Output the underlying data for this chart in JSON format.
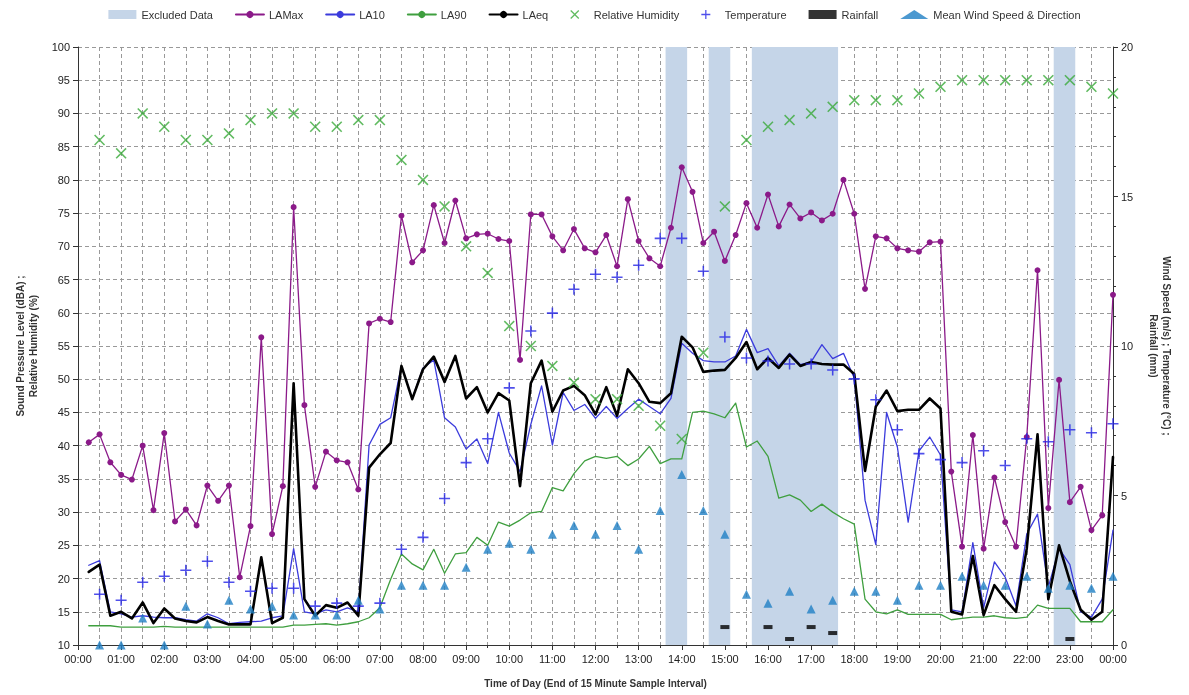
{
  "chart_data": {
    "type": "line",
    "xlabel": "Time of Day (End of 15 Minute Sample Interval)",
    "ylabel": "Sound Pressure Level (dBA) ;\nRelative Humidity (%)",
    "y2label": "Wind Speed (m/s) ; Temperature (°C) ;\nRainfall (mm)",
    "x": [
      0.25,
      0.5,
      0.75,
      1,
      1.25,
      1.5,
      1.75,
      2,
      2.25,
      2.5,
      2.75,
      3,
      3.25,
      3.5,
      3.75,
      4,
      4.25,
      4.5,
      4.75,
      5,
      5.25,
      5.5,
      5.75,
      6,
      6.25,
      6.5,
      6.75,
      7,
      7.25,
      7.5,
      7.75,
      8,
      8.25,
      8.5,
      8.75,
      9,
      9.25,
      9.5,
      9.75,
      10,
      10.25,
      10.5,
      10.75,
      11,
      11.25,
      11.5,
      11.75,
      12,
      12.25,
      12.5,
      12.75,
      13,
      13.25,
      13.5,
      13.75,
      14,
      14.25,
      14.5,
      14.75,
      15,
      15.25,
      15.5,
      15.75,
      16,
      16.25,
      16.5,
      16.75,
      17,
      17.25,
      17.5,
      17.75,
      18,
      18.25,
      18.5,
      18.75,
      19,
      19.25,
      19.5,
      19.75,
      20,
      20.25,
      20.5,
      20.75,
      21,
      21.25,
      21.5,
      21.75,
      22,
      22.25,
      22.5,
      22.75,
      23,
      23.25,
      23.5,
      23.75,
      24
    ],
    "xlim": [
      0,
      24
    ],
    "xticks": [
      {
        "value": 0,
        "label": "00:00"
      },
      {
        "value": 1,
        "label": "01:00"
      },
      {
        "value": 2,
        "label": "02:00"
      },
      {
        "value": 3,
        "label": "03:00"
      },
      {
        "value": 4,
        "label": "04:00"
      },
      {
        "value": 5,
        "label": "05:00"
      },
      {
        "value": 6,
        "label": "06:00"
      },
      {
        "value": 7,
        "label": "07:00"
      },
      {
        "value": 8,
        "label": "08:00"
      },
      {
        "value": 9,
        "label": "09:00"
      },
      {
        "value": 10,
        "label": "10:00"
      },
      {
        "value": 11,
        "label": "11:00"
      },
      {
        "value": 12,
        "label": "12:00"
      },
      {
        "value": 13,
        "label": "13:00"
      },
      {
        "value": 14,
        "label": "14:00"
      },
      {
        "value": 15,
        "label": "15:00"
      },
      {
        "value": 16,
        "label": "16:00"
      },
      {
        "value": 17,
        "label": "17:00"
      },
      {
        "value": 18,
        "label": "18:00"
      },
      {
        "value": 19,
        "label": "19:00"
      },
      {
        "value": 20,
        "label": "20:00"
      },
      {
        "value": 21,
        "label": "21:00"
      },
      {
        "value": 22,
        "label": "22:00"
      },
      {
        "value": 23,
        "label": "23:00"
      },
      {
        "value": 24,
        "label": "00:00"
      }
    ],
    "ylim": [
      10,
      100
    ],
    "yticks": [
      10,
      15,
      20,
      25,
      30,
      35,
      40,
      45,
      50,
      55,
      60,
      65,
      70,
      75,
      80,
      85,
      90,
      95,
      100
    ],
    "y2lim": [
      0,
      20
    ],
    "y2ticks": [
      0,
      5,
      10,
      15,
      20
    ],
    "grid": true,
    "legend": "top",
    "bands": [
      {
        "axis": "x",
        "from": 13.625,
        "to": 14.125,
        "label": "Excluded Data",
        "color": "#c5d5e8"
      },
      {
        "axis": "x",
        "from": 14.625,
        "to": 15.125,
        "color": "#c5d5e8"
      },
      {
        "axis": "x",
        "from": 15.625,
        "to": 17.625,
        "color": "#c5d5e8"
      },
      {
        "axis": "x",
        "from": 22.625,
        "to": 23.125,
        "color": "#c5d5e8"
      }
    ],
    "series": [
      {
        "name": "LAMax",
        "color": "#8b1a89",
        "marker": "circle",
        "values": [
          40.5,
          41.7,
          37.5,
          35.6,
          34.9,
          40,
          30.3,
          41.9,
          28.6,
          30.4,
          28,
          34,
          31.7,
          34,
          20.2,
          27.9,
          56.3,
          26.7,
          33.9,
          75.9,
          46.1,
          33.8,
          39.1,
          37.8,
          37.5,
          33.4,
          58.4,
          59.1,
          58.6,
          74.6,
          67.6,
          69.4,
          76.2,
          70.5,
          76.9,
          71.2,
          71.8,
          71.9,
          71.1,
          70.8,
          52.9,
          74.8,
          74.8,
          71.5,
          69.4,
          72.6,
          69.7,
          69.1,
          71.7,
          67,
          77.1,
          70.8,
          68.2,
          67,
          72.8,
          81.9,
          78.2,
          70.5,
          72.2,
          67.8,
          71.7,
          76.5,
          72.8,
          77.8,
          73,
          76.3,
          74.2,
          75.1,
          73.9,
          74.9,
          80,
          74.9,
          63.6,
          71.5,
          71.2,
          69.7,
          69.4,
          69.2,
          70.6,
          70.7,
          36.1,
          24.8,
          41.6,
          24.5,
          35.2,
          28.5,
          24.8,
          41.3,
          66.4,
          30.6,
          49.9,
          31.5,
          33.8,
          27.3,
          29.5,
          62.7
        ]
      },
      {
        "name": "LA10",
        "color": "#3b3bdc",
        "values": [
          22,
          22.7,
          15,
          14.7,
          14.2,
          14.4,
          14.2,
          14.1,
          14.1,
          13.8,
          13.6,
          14.7,
          14.1,
          13.2,
          13.4,
          13.5,
          13.6,
          14.1,
          14.4,
          24.5,
          15,
          14.7,
          15.3,
          15,
          15.6,
          15,
          40.1,
          43.2,
          44.2,
          52,
          47.1,
          51.7,
          52.9,
          44.2,
          42.8,
          39.5,
          41,
          37.3,
          45,
          38.9,
          36.1,
          43.2,
          49,
          40.1,
          48,
          45.3,
          46.2,
          44.1,
          45.9,
          44.1,
          45.6,
          47,
          45.9,
          44.8,
          47.1,
          55.4,
          53.9,
          52.8,
          52.6,
          52.6,
          53.5,
          57.5,
          54,
          54.6,
          52,
          53.9,
          52.2,
          52.6,
          55.2,
          53.1,
          53.9,
          50.2,
          31.8,
          25.1,
          45,
          39.8,
          28.5,
          39.2,
          41.3,
          38.6,
          15.3,
          15,
          25.4,
          15.6,
          22.5,
          20.2,
          15.9,
          26.7,
          29.7,
          18.7,
          24.5,
          22.1,
          15,
          14.2,
          16.9,
          27.3
        ]
      },
      {
        "name": "LA90",
        "color": "#3f9f3f",
        "values": [
          12.9,
          12.9,
          12.9,
          12.7,
          12.7,
          12.7,
          12.7,
          12.8,
          12.7,
          12.7,
          12.7,
          12.7,
          12.7,
          12.7,
          12.7,
          12.7,
          12.7,
          12.7,
          12.7,
          13,
          13,
          13.1,
          13.2,
          13,
          13.2,
          13.5,
          14.1,
          15.6,
          19.9,
          23.7,
          22.2,
          21.3,
          24.4,
          20.8,
          23.7,
          23.9,
          26.2,
          25,
          28.5,
          27.9,
          28.8,
          29.9,
          30.1,
          33.7,
          33.2,
          35.8,
          37.7,
          38.4,
          38.1,
          38.4,
          37,
          38,
          39.9,
          37.3,
          38,
          38,
          45,
          45.2,
          44.8,
          44.2,
          46.4,
          39.8,
          40.7,
          38.4,
          32.1,
          32.6,
          31.8,
          30.1,
          31.2,
          30,
          29,
          28.2,
          16.9,
          15,
          14.7,
          15.3,
          14.6,
          14.6,
          14.6,
          14.6,
          13.8,
          14,
          14.2,
          14.2,
          14.4,
          14.1,
          14,
          14.2,
          16,
          15.5,
          15.5,
          15.5,
          13.5,
          13.5,
          13.5,
          15.3
        ]
      },
      {
        "name": "LAeq",
        "color": "#000000",
        "values": [
          21,
          22.1,
          14.4,
          15,
          14,
          16.4,
          13.3,
          15.5,
          14,
          13.6,
          13.4,
          14.2,
          13.6,
          13.1,
          13.1,
          13.1,
          23.2,
          13.3,
          14.1,
          49.4,
          16.9,
          14.4,
          16,
          15.6,
          16.4,
          14.4,
          36.7,
          38.7,
          40.4,
          52,
          47,
          51.5,
          53.4,
          49.6,
          53.5,
          47.1,
          48.8,
          45,
          47.9,
          46.8,
          33.9,
          49.4,
          52.8,
          45.1,
          48.3,
          49,
          47.6,
          44.7,
          48.8,
          44.5,
          51.5,
          49.4,
          46.6,
          46.4,
          47.9,
          56.4,
          54.8,
          51.1,
          51.3,
          51.4,
          53.2,
          55.6,
          51.5,
          53.2,
          51.7,
          53.7,
          52,
          52.6,
          52.3,
          52.2,
          52.2,
          50.8,
          36.2,
          45.9,
          48.3,
          45.2,
          45.4,
          45.4,
          47.1,
          45.6,
          15,
          14.6,
          23.4,
          14.5,
          19,
          16.9,
          15,
          24.5,
          41.7,
          16.9,
          25,
          19.6,
          15.3,
          13.8,
          15,
          38.3
        ]
      },
      {
        "name": "Relative Humidity",
        "type": "scatter",
        "color": "#3aaa3a",
        "marker": "cross",
        "x": [
          0.5,
          1,
          1.5,
          2,
          2.5,
          3,
          3.5,
          4,
          4.5,
          5,
          5.5,
          6,
          6.5,
          7,
          7.5,
          8,
          8.5,
          9,
          9.5,
          10,
          10.5,
          11,
          11.5,
          12,
          12.5,
          13,
          13.5,
          14,
          14.5,
          15,
          15.5,
          16,
          16.5,
          17,
          17.5,
          18,
          18.5,
          19,
          19.5,
          20,
          20.5,
          21,
          21.5,
          22,
          22.5,
          23,
          23.5,
          24
        ],
        "values": [
          86,
          84,
          90,
          88,
          86,
          86,
          87,
          89,
          90,
          90,
          88,
          88,
          89,
          89,
          83,
          80,
          76,
          70,
          66,
          58,
          55,
          52,
          49.5,
          47,
          47,
          46,
          43,
          41,
          54,
          76,
          86,
          88,
          89,
          90,
          91,
          92,
          92,
          92,
          93,
          94,
          95,
          95,
          95,
          95,
          95,
          95,
          94,
          93
        ]
      },
      {
        "name": "Temperature",
        "type": "scatter",
        "axis": "y2",
        "color": "#2323e6",
        "marker": "plus",
        "x": [
          0.5,
          1,
          1.5,
          2,
          2.5,
          3,
          3.5,
          4,
          4.5,
          5,
          5.5,
          6,
          6.5,
          7,
          7.5,
          8,
          8.5,
          9,
          9.5,
          10,
          10.5,
          11,
          11.5,
          12,
          12.5,
          13,
          13.5,
          14,
          14.5,
          15,
          15.5,
          16,
          16.5,
          17,
          17.5,
          18,
          18.5,
          19,
          19.5,
          20,
          20.5,
          21,
          21.5,
          22,
          22.5,
          23,
          23.5,
          24
        ],
        "values": [
          1.7,
          1.5,
          2.1,
          2.3,
          2.5,
          2.8,
          2.1,
          1.8,
          1.9,
          1.9,
          1.3,
          1.4,
          1.3,
          1.4,
          3.2,
          3.6,
          4.9,
          6.1,
          6.9,
          8.6,
          10.5,
          11.1,
          11.9,
          12.4,
          12.3,
          12.7,
          13.6,
          13.6,
          12.5,
          10.3,
          9.6,
          9.5,
          9.4,
          9.4,
          9.2,
          8.9,
          8.2,
          7.2,
          6.4,
          6.2,
          6.1,
          6.5,
          6,
          6.9,
          6.8,
          7.2,
          7.1,
          7.4
        ]
      },
      {
        "name": "Rainfall",
        "type": "scatter",
        "axis": "y2",
        "color": "#000000",
        "marker": "square",
        "x": [
          15,
          16,
          16.5,
          17,
          17.5,
          23
        ],
        "values": [
          0.6,
          0.6,
          0.2,
          0.6,
          0.4,
          0.2
        ]
      },
      {
        "name": "Mean Wind Speed & Direction",
        "type": "scatter",
        "axis": "y2",
        "color": "#1f7fc4",
        "marker": "triangle",
        "x": [
          0.5,
          1,
          1.5,
          2,
          2.5,
          3,
          3.5,
          4,
          4.5,
          5,
          5.5,
          6,
          6.5,
          7,
          7.5,
          8,
          8.5,
          9,
          9.5,
          10,
          10.5,
          11,
          11.5,
          12,
          12.5,
          13,
          13.5,
          14,
          14.5,
          15,
          15.5,
          16,
          16.5,
          17,
          17.5,
          18,
          18.5,
          19,
          19.5,
          20,
          20.5,
          21,
          21.5,
          22,
          22.5,
          23,
          23.5,
          24
        ],
        "values": [
          0,
          0,
          0.9,
          0,
          1.3,
          0.7,
          1.5,
          1.2,
          1.3,
          1,
          1,
          1,
          1.5,
          1.2,
          2,
          2,
          2,
          2.6,
          3.2,
          3.4,
          3.2,
          3.7,
          4,
          3.7,
          4,
          3.2,
          4.5,
          5.7,
          4.5,
          3.7,
          1.7,
          1.4,
          1.8,
          1.2,
          1.5,
          1.8,
          1.8,
          1.5,
          2,
          2,
          2.3,
          2,
          2,
          2.3,
          1.9,
          2,
          1.9,
          2.3
        ]
      }
    ]
  }
}
